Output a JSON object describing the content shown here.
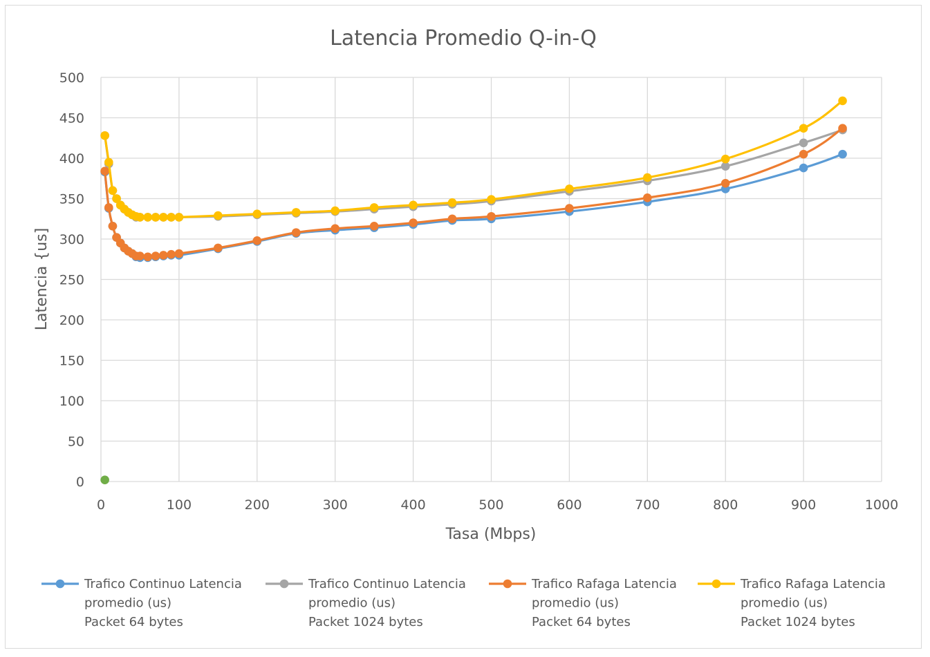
{
  "chart_data": {
    "type": "scatter",
    "title": "Latencia Promedio Q-in-Q",
    "xlabel": "Tasa (Mbps)",
    "ylabel": "Latencia {us]",
    "xlim": [
      0,
      1000
    ],
    "ylim": [
      0,
      500
    ],
    "x_ticks": [
      "0",
      "100",
      "200",
      "300",
      "400",
      "500",
      "600",
      "700",
      "800",
      "900",
      "1000"
    ],
    "y_ticks": [
      "0",
      "50",
      "100",
      "150",
      "200",
      "250",
      "300",
      "350",
      "400",
      "450",
      "500"
    ],
    "grid": true,
    "smooth_lines": true,
    "legend_position": "bottom",
    "series": [
      {
        "name": "Trafico Continuo Latencia promedio (us) Packet 64 bytes",
        "legend_lines": [
          "Trafico Continuo Latencia",
          "promedio (us)",
          "Packet 64 bytes"
        ],
        "color": "#5b9bd5",
        "points": [
          [
            5,
            383
          ],
          [
            10,
            338
          ],
          [
            15,
            316
          ],
          [
            20,
            302
          ],
          [
            25,
            295
          ],
          [
            30,
            289
          ],
          [
            35,
            285
          ],
          [
            40,
            282
          ],
          [
            45,
            278
          ],
          [
            50,
            277
          ],
          [
            60,
            277
          ],
          [
            70,
            278
          ],
          [
            80,
            279
          ],
          [
            90,
            280
          ],
          [
            100,
            280
          ],
          [
            150,
            288
          ],
          [
            200,
            297
          ],
          [
            250,
            307
          ],
          [
            300,
            311
          ],
          [
            350,
            314
          ],
          [
            400,
            318
          ],
          [
            450,
            323
          ],
          [
            500,
            325
          ],
          [
            600,
            334
          ],
          [
            700,
            346
          ],
          [
            800,
            362
          ],
          [
            900,
            388
          ],
          [
            950,
            405
          ]
        ]
      },
      {
        "name": "Trafico Continuo Latencia promedio (us) Packet 1024 bytes",
        "legend_lines": [
          "Trafico Continuo Latencia",
          "promedio (us)",
          "Packet 1024 bytes"
        ],
        "color": "#a5a5a5",
        "points": [
          [
            5,
            428
          ],
          [
            10,
            393
          ],
          [
            15,
            360
          ],
          [
            20,
            350
          ],
          [
            25,
            342
          ],
          [
            30,
            337
          ],
          [
            35,
            333
          ],
          [
            40,
            330
          ],
          [
            45,
            327
          ],
          [
            50,
            327
          ],
          [
            60,
            327
          ],
          [
            70,
            327
          ],
          [
            80,
            327
          ],
          [
            90,
            327
          ],
          [
            100,
            327
          ],
          [
            150,
            328
          ],
          [
            200,
            330
          ],
          [
            250,
            332
          ],
          [
            300,
            334
          ],
          [
            350,
            337
          ],
          [
            400,
            340
          ],
          [
            450,
            343
          ],
          [
            500,
            347
          ],
          [
            600,
            359
          ],
          [
            700,
            372
          ],
          [
            800,
            390
          ],
          [
            900,
            419
          ],
          [
            950,
            435
          ]
        ]
      },
      {
        "name": "Trafico Rafaga Latencia promedio (us) Packet 64 bytes",
        "legend_lines": [
          "Trafico Rafaga Latencia",
          "promedio (us)",
          "Packet 64 bytes"
        ],
        "color": "#ed7d31",
        "points": [
          [
            5,
            384
          ],
          [
            10,
            339
          ],
          [
            15,
            316
          ],
          [
            20,
            302
          ],
          [
            25,
            295
          ],
          [
            30,
            289
          ],
          [
            35,
            285
          ],
          [
            40,
            282
          ],
          [
            45,
            279
          ],
          [
            50,
            279
          ],
          [
            60,
            278
          ],
          [
            70,
            279
          ],
          [
            80,
            280
          ],
          [
            90,
            281
          ],
          [
            100,
            282
          ],
          [
            150,
            289
          ],
          [
            200,
            298
          ],
          [
            250,
            308
          ],
          [
            300,
            313
          ],
          [
            350,
            316
          ],
          [
            400,
            320
          ],
          [
            450,
            325
          ],
          [
            500,
            328
          ],
          [
            600,
            338
          ],
          [
            700,
            351
          ],
          [
            800,
            369
          ],
          [
            900,
            405
          ],
          [
            950,
            437
          ]
        ]
      },
      {
        "name": "Trafico Rafaga Latencia promedio (us) Packet 1024 bytes",
        "legend_lines": [
          "Trafico Rafaga Latencia",
          "promedio (us)",
          "Packet 1024 bytes"
        ],
        "color": "#ffc000",
        "points": [
          [
            5,
            428
          ],
          [
            10,
            395
          ],
          [
            15,
            360
          ],
          [
            20,
            350
          ],
          [
            25,
            342
          ],
          [
            30,
            337
          ],
          [
            35,
            333
          ],
          [
            40,
            330
          ],
          [
            45,
            328
          ],
          [
            50,
            327
          ],
          [
            60,
            327
          ],
          [
            70,
            327
          ],
          [
            80,
            327
          ],
          [
            90,
            327
          ],
          [
            100,
            327
          ],
          [
            150,
            329
          ],
          [
            200,
            331
          ],
          [
            250,
            333
          ],
          [
            300,
            335
          ],
          [
            350,
            339
          ],
          [
            400,
            342
          ],
          [
            450,
            345
          ],
          [
            500,
            349
          ],
          [
            600,
            362
          ],
          [
            700,
            376
          ],
          [
            800,
            399
          ],
          [
            900,
            437
          ],
          [
            950,
            471
          ]
        ]
      },
      {
        "color": "#70ad47",
        "points": [
          [
            5,
            2
          ]
        ]
      }
    ]
  }
}
